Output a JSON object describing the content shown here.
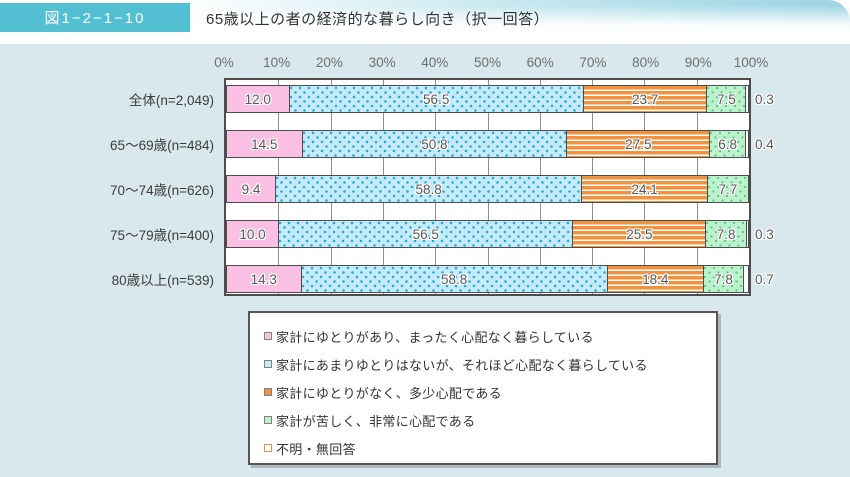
{
  "header": {
    "tag": "図1−2−1−10",
    "title": "65歳以上の者の経済的な暮らし向き（択一回答）"
  },
  "colors": {
    "accent_teal": "#53bfd2",
    "page_bg": "#d8e8ec",
    "header_fade": "#9cd4e3",
    "plot_border": "#4d4d4d",
    "grid_line": "#909090",
    "value_text": "#575757",
    "series_pink": "#f9c0e4",
    "series_blue": "#c6eaf8",
    "series_blue_dot": "#1faedc",
    "series_orange": "#f2913e",
    "series_green": "#bcf2cb",
    "series_green_dot": "#53c584",
    "unknown_fill": "#ffffff",
    "unknown_swatch_border": "#e8954f"
  },
  "chart_data": {
    "type": "bar",
    "orientation": "horizontal-stacked",
    "unit": "%",
    "xlim": [
      0,
      100
    ],
    "grid": true,
    "legend_position": "bottom-box",
    "x_ticks": [
      "0%",
      "10%",
      "20%",
      "30%",
      "40%",
      "50%",
      "60%",
      "70%",
      "80%",
      "90%",
      "100%"
    ],
    "categories": [
      "全体(n=2,049)",
      "65〜69歳(n=484)",
      "70〜74歳(n=626)",
      "75〜79歳(n=400)",
      "80歳以上(n=539)"
    ],
    "series": [
      {
        "name": "家計にゆとりがあり、まったく心配なく暮らしている",
        "color": "#f9c0e4",
        "values": [
          12.0,
          14.5,
          9.4,
          10.0,
          14.3
        ]
      },
      {
        "name": "家計にあまりゆとりはないが、それほど心配なく暮らしている",
        "color": "#c6eaf8",
        "values": [
          56.5,
          50.8,
          58.8,
          56.5,
          58.8
        ]
      },
      {
        "name": "家計にゆとりがなく、多少心配である",
        "color": "#f2913e",
        "values": [
          23.7,
          27.5,
          24.1,
          25.5,
          18.4
        ]
      },
      {
        "name": "家計が苦しく、非常に心配である",
        "color": "#bcf2cb",
        "values": [
          7.5,
          6.8,
          7.7,
          7.8,
          7.8
        ]
      },
      {
        "name": "不明・無回答",
        "color": "#ffffff",
        "values": [
          0.3,
          0.4,
          null,
          0.3,
          0.7
        ]
      }
    ]
  }
}
